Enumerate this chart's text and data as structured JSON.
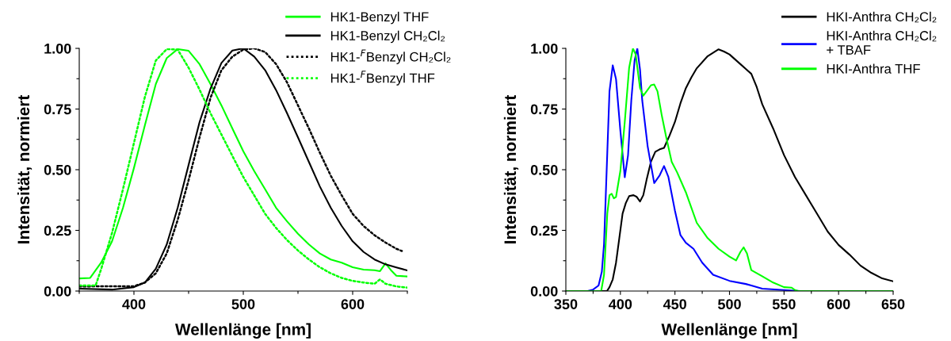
{
  "chart_data": [
    {
      "type": "line",
      "xlabel": "Wellenlänge [nm]",
      "ylabel": "Intensität, normiert",
      "legend": "top right",
      "grid": false,
      "xlim": [
        350,
        650
      ],
      "ylim": [
        0,
        1
      ],
      "xticks": [
        {
          "value": 350,
          "label": null
        },
        400,
        {
          "value": 450,
          "label": null
        },
        500,
        {
          "value": 550,
          "label": null
        },
        600,
        {
          "value": 650,
          "label": null
        }
      ],
      "yticks": [
        {
          "value": 0,
          "label": "0.00"
        },
        {
          "value": 0.125,
          "label": null
        },
        {
          "value": 0.25,
          "label": "0.25"
        },
        {
          "value": 0.375,
          "label": null
        },
        {
          "value": 0.5,
          "label": "0.50"
        },
        {
          "value": 0.625,
          "label": null
        },
        {
          "value": 0.75,
          "label": "0.75"
        },
        {
          "value": 0.875,
          "label": null
        },
        {
          "value": 1,
          "label": "1.00"
        }
      ],
      "series": [
        {
          "name": "HK1-Benzyl THF",
          "color": "#00ff00",
          "line_style": "solid",
          "x": [
            350,
            360,
            370,
            380,
            390,
            400,
            410,
            420,
            430,
            440,
            450,
            460,
            470,
            480,
            490,
            500,
            510,
            520,
            530,
            540,
            550,
            560,
            570,
            580,
            590,
            600,
            610,
            620,
            625,
            630,
            635,
            640,
            650
          ],
          "values": [
            0.052,
            0.054,
            0.117,
            0.205,
            0.343,
            0.507,
            0.683,
            0.853,
            0.96,
            0.997,
            0.99,
            0.935,
            0.853,
            0.765,
            0.67,
            0.576,
            0.494,
            0.419,
            0.343,
            0.287,
            0.236,
            0.192,
            0.155,
            0.13,
            0.117,
            0.098,
            0.088,
            0.086,
            0.082,
            0.114,
            0.086,
            0.063,
            0.06
          ]
        },
        {
          "name": "HK1-Benzyl CH₂Cl₂",
          "color": "#000000",
          "line_style": "solid",
          "x": [
            350,
            380,
            400,
            410,
            420,
            430,
            440,
            450,
            460,
            470,
            480,
            490,
            500,
            510,
            520,
            530,
            540,
            550,
            560,
            570,
            580,
            590,
            600,
            610,
            620,
            630,
            640,
            650
          ],
          "values": [
            0.01,
            0.006,
            0.016,
            0.035,
            0.092,
            0.192,
            0.343,
            0.52,
            0.696,
            0.834,
            0.94,
            0.991,
            1.0,
            0.966,
            0.91,
            0.828,
            0.733,
            0.633,
            0.532,
            0.431,
            0.343,
            0.268,
            0.205,
            0.161,
            0.13,
            0.11,
            0.097,
            0.085
          ]
        },
        {
          "name": "HK1-$^{F}$Benzyl CH₂Cl₂",
          "color": "#000000",
          "line_style": "dotted",
          "x": [
            350,
            400,
            410,
            420,
            430,
            440,
            450,
            460,
            470,
            480,
            490,
            500,
            510,
            520,
            530,
            540,
            550,
            560,
            570,
            580,
            590,
            600,
            610,
            620,
            630,
            640,
            645
          ],
          "values": [
            0.019,
            0.02,
            0.035,
            0.073,
            0.155,
            0.293,
            0.457,
            0.633,
            0.796,
            0.91,
            0.966,
            0.995,
            1.0,
            0.985,
            0.935,
            0.86,
            0.765,
            0.67,
            0.57,
            0.475,
            0.394,
            0.318,
            0.268,
            0.23,
            0.2,
            0.174,
            0.165
          ]
        },
        {
          "name": "HK1-$^{F}$Benzyl THF",
          "color": "#00ff00",
          "line_style": "dotted",
          "x": [
            350,
            365,
            370,
            380,
            390,
            400,
            410,
            420,
            430,
            440,
            450,
            460,
            470,
            480,
            490,
            500,
            510,
            520,
            530,
            540,
            550,
            560,
            570,
            580,
            590,
            600,
            610,
            620,
            625,
            630,
            640,
            650
          ],
          "values": [
            0.023,
            0.023,
            0.09,
            0.24,
            0.42,
            0.61,
            0.8,
            0.95,
            0.997,
            0.995,
            0.92,
            0.83,
            0.733,
            0.645,
            0.557,
            0.47,
            0.394,
            0.318,
            0.26,
            0.21,
            0.167,
            0.13,
            0.098,
            0.073,
            0.054,
            0.042,
            0.035,
            0.03,
            0.048,
            0.03,
            0.019,
            0.014
          ]
        }
      ]
    },
    {
      "type": "line",
      "xlabel": "Wellenlänge [nm]",
      "ylabel": "Intensität, normiert",
      "legend": "top right",
      "grid": false,
      "xlim": [
        350,
        650
      ],
      "ylim": [
        0,
        1
      ],
      "xticks": [
        350,
        {
          "value": 375,
          "label": null
        },
        400,
        {
          "value": 425,
          "label": null
        },
        450,
        {
          "value": 475,
          "label": null
        },
        500,
        {
          "value": 525,
          "label": null
        },
        550,
        {
          "value": 575,
          "label": null
        },
        600,
        {
          "value": 625,
          "label": null
        },
        650
      ],
      "yticks": [
        {
          "value": 0,
          "label": "0.00"
        },
        {
          "value": 0.125,
          "label": null
        },
        {
          "value": 0.25,
          "label": "0.25"
        },
        {
          "value": 0.375,
          "label": null
        },
        {
          "value": 0.5,
          "label": "0.50"
        },
        {
          "value": 0.625,
          "label": null
        },
        {
          "value": 0.75,
          "label": "0.75"
        },
        {
          "value": 0.875,
          "label": null
        },
        {
          "value": 1,
          "label": "1.00"
        }
      ],
      "series": [
        {
          "name": "HKI-Anthra CH₂Cl₂",
          "color": "#000000",
          "line_style": "solid",
          "x": [
            350,
            387.7,
            390,
            393,
            396,
            399,
            402,
            405,
            408,
            412,
            415,
            418,
            421,
            424,
            428,
            432,
            436,
            440,
            445,
            450,
            455,
            460,
            465,
            470,
            480,
            490,
            495,
            500,
            510,
            515,
            520,
            525,
            530,
            540,
            550,
            560,
            570,
            580,
            590,
            600,
            610,
            620,
            630,
            640,
            650
          ],
          "values": [
            0,
            0,
            0.016,
            0.048,
            0.117,
            0.218,
            0.319,
            0.363,
            0.391,
            0.395,
            0.388,
            0.369,
            0.395,
            0.458,
            0.533,
            0.574,
            0.584,
            0.59,
            0.64,
            0.697,
            0.773,
            0.836,
            0.88,
            0.918,
            0.968,
            0.996,
            0.987,
            0.975,
            0.935,
            0.915,
            0.895,
            0.84,
            0.77,
            0.67,
            0.56,
            0.47,
            0.395,
            0.32,
            0.245,
            0.19,
            0.15,
            0.105,
            0.075,
            0.052,
            0.04
          ]
        },
        {
          "name": "HKI-Anthra CH₂Cl₂\n+ TBAF",
          "color": "#0000ff",
          "line_style": "solid",
          "x": [
            350,
            370,
            375,
            380,
            383,
            385,
            388,
            390,
            393,
            396,
            400,
            404,
            407,
            410,
            413,
            415.5,
            418,
            420,
            425,
            431,
            436,
            440,
            444,
            450,
            455,
            460,
            467,
            475,
            485,
            500,
            515,
            520,
            530,
            550,
            565,
            650
          ],
          "values": [
            0,
            0,
            0.006,
            0.023,
            0.08,
            0.193,
            0.571,
            0.823,
            0.93,
            0.873,
            0.66,
            0.469,
            0.559,
            0.786,
            0.95,
            1.0,
            0.912,
            0.786,
            0.596,
            0.445,
            0.477,
            0.515,
            0.47,
            0.331,
            0.231,
            0.199,
            0.174,
            0.117,
            0.067,
            0.042,
            0.029,
            0.023,
            0.01,
            0.004,
            0,
            0
          ]
        },
        {
          "name": "HKI-Anthra THF",
          "color": "#00ff00",
          "line_style": "solid",
          "x": [
            350,
            382.4,
            385,
            388,
            390,
            392,
            394,
            396,
            400,
            404,
            408,
            411.5,
            414,
            418,
            421,
            424,
            428,
            431,
            434,
            438,
            442,
            447,
            452,
            460,
            470,
            480,
            490,
            500,
            506,
            510,
            513,
            516,
            520,
            530,
            540,
            550,
            557,
            560,
            563,
            650
          ],
          "values": [
            0,
            0,
            0.067,
            0.32,
            0.395,
            0.401,
            0.382,
            0.388,
            0.496,
            0.697,
            0.92,
            1.0,
            0.975,
            0.836,
            0.805,
            0.823,
            0.848,
            0.851,
            0.823,
            0.722,
            0.634,
            0.533,
            0.489,
            0.407,
            0.281,
            0.218,
            0.174,
            0.142,
            0.126,
            0.161,
            0.18,
            0.155,
            0.086,
            0.061,
            0.035,
            0.016,
            0.014,
            0.004,
            0,
            0
          ]
        }
      ]
    }
  ]
}
